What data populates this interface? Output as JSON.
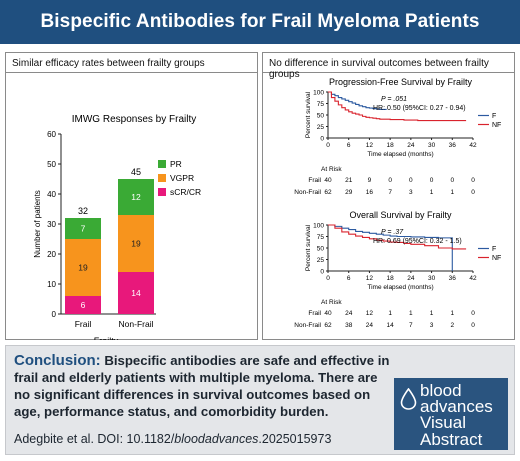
{
  "page": {
    "title": "Bispecific Antibodies for Frail Myeloma Patients"
  },
  "left_panel": {
    "heading": "Similar efficacy rates between frailty groups"
  },
  "right_panel": {
    "heading": "No difference in survival outcomes between frailty groups"
  },
  "colors": {
    "title_bar": "#1f4f7f",
    "PR": "#3aaa35",
    "VGPR": "#f7941d",
    "sCR_CR": "#e8187b",
    "F_curve": "#2c5aa0",
    "NF_curve": "#d9232d",
    "logo": "#2a547f"
  },
  "chart_data": [
    {
      "type": "bar",
      "stacked": true,
      "title": "IMWG Responses by Frailty",
      "xlabel": "Frailty",
      "ylabel": "Number of patients",
      "ylim": [
        0,
        60
      ],
      "yticks": [
        0,
        10,
        20,
        30,
        40,
        50,
        60
      ],
      "categories": [
        "Frail",
        "Non-Frail"
      ],
      "series": [
        {
          "name": "sCR/CR",
          "values": [
            6,
            14
          ]
        },
        {
          "name": "VGPR",
          "values": [
            19,
            19
          ]
        },
        {
          "name": "PR",
          "values": [
            7,
            12
          ]
        }
      ],
      "totals": [
        32,
        45
      ],
      "legend": [
        "PR",
        "VGPR",
        "sCR/CR"
      ],
      "legend_position": "right"
    },
    {
      "type": "line",
      "subtype": "kaplan-meier",
      "title": "Progression-Free Survival by Frailty",
      "xlabel": "Time elapsed (months)",
      "ylabel": "Percent survival",
      "xlim": [
        0,
        42
      ],
      "ylim": [
        0,
        100
      ],
      "xticks": [
        0,
        6,
        12,
        18,
        24,
        30,
        36,
        42
      ],
      "yticks": [
        0,
        25,
        50,
        75,
        100
      ],
      "annotation": {
        "p_label": "P = .051",
        "hr": "HR: 0.50 (95%CI: 0.27 - 0.94)"
      },
      "series": [
        {
          "name": "F",
          "x": [
            0,
            1,
            2,
            3,
            4,
            5,
            6,
            7,
            8,
            9,
            10,
            11,
            12,
            13,
            14,
            15,
            16,
            17
          ],
          "y": [
            100,
            95,
            92,
            88,
            85,
            82,
            79,
            76,
            73,
            70,
            68,
            66,
            65,
            64,
            63,
            62,
            62,
            62
          ]
        },
        {
          "name": "NF",
          "x": [
            0,
            1,
            2,
            3,
            4,
            5,
            6,
            7,
            8,
            9,
            10,
            11,
            12,
            13,
            14,
            15,
            16,
            18,
            20,
            22,
            24,
            26,
            28,
            30,
            32,
            34,
            36,
            38,
            40
          ],
          "y": [
            100,
            88,
            80,
            72,
            66,
            61,
            57,
            54,
            52,
            50,
            47,
            45,
            44,
            43,
            42,
            41,
            41,
            40,
            40,
            39,
            39,
            38,
            38,
            38,
            38,
            38,
            38,
            38,
            38
          ]
        }
      ],
      "at_risk": {
        "header": "At Risk",
        "rows": [
          {
            "group": "Frail",
            "counts": [
              "40",
              "21",
              "9",
              "0",
              "0",
              "0",
              "0",
              "0"
            ]
          },
          {
            "group": "Non-Frail",
            "counts": [
              "62",
              "29",
              "16",
              "7",
              "3",
              "1",
              "1",
              "0"
            ]
          }
        ]
      },
      "legend": [
        "F",
        "NF"
      ],
      "legend_position": "right"
    },
    {
      "type": "line",
      "subtype": "kaplan-meier",
      "title": "Overall Survival by Frailty",
      "xlabel": "Time elapsed (months)",
      "ylabel": "Percent survival",
      "xlim": [
        0,
        42
      ],
      "ylim": [
        0,
        100
      ],
      "xticks": [
        0,
        6,
        12,
        18,
        24,
        30,
        36,
        42
      ],
      "yticks": [
        0,
        25,
        50,
        75,
        100
      ],
      "annotation": {
        "p_label": "P = .37",
        "hr": "HR: 0.69 (95%CI: 0.32 - 1.5)"
      },
      "series": [
        {
          "name": "F",
          "x": [
            0,
            2,
            4,
            6,
            8,
            10,
            12,
            14,
            16,
            18,
            20,
            24,
            28,
            32,
            35,
            36,
            36
          ],
          "y": [
            100,
            97,
            93,
            90,
            86,
            84,
            82,
            80,
            78,
            76,
            75,
            74,
            73,
            72,
            72,
            72,
            0
          ]
        },
        {
          "name": "NF",
          "x": [
            0,
            2,
            4,
            6,
            8,
            10,
            12,
            14,
            16,
            18,
            20,
            22,
            24,
            28,
            32,
            36,
            40
          ],
          "y": [
            100,
            93,
            85,
            80,
            76,
            73,
            70,
            67,
            65,
            63,
            62,
            60,
            58,
            55,
            50,
            48,
            48
          ]
        }
      ],
      "at_risk": {
        "header": "At Risk",
        "rows": [
          {
            "group": "Frail",
            "counts": [
              "40",
              "24",
              "12",
              "1",
              "1",
              "1",
              "1",
              "0"
            ]
          },
          {
            "group": "Non-Frail",
            "counts": [
              "62",
              "38",
              "24",
              "14",
              "7",
              "3",
              "2",
              "0"
            ]
          }
        ]
      },
      "legend": [
        "F",
        "NF"
      ],
      "legend_position": "right"
    }
  ],
  "conclusion": {
    "label": "Conclusion:",
    "text": "Bispecific antibodies are safe and effective in frail and elderly patients with multiple myeloma. There are no significant differences in survival outcomes based on age, performance status, and comorbidity burden.",
    "citation_prefix": "Adegbite et al. DOI: 10.1182/",
    "citation_journal": "bloodadvances",
    "citation_suffix": ".2025015973"
  },
  "logo": {
    "line1": "blood",
    "line2": "advances",
    "line3": "Visual",
    "line4": "Abstract",
    "icon": "blood-drop-icon"
  }
}
